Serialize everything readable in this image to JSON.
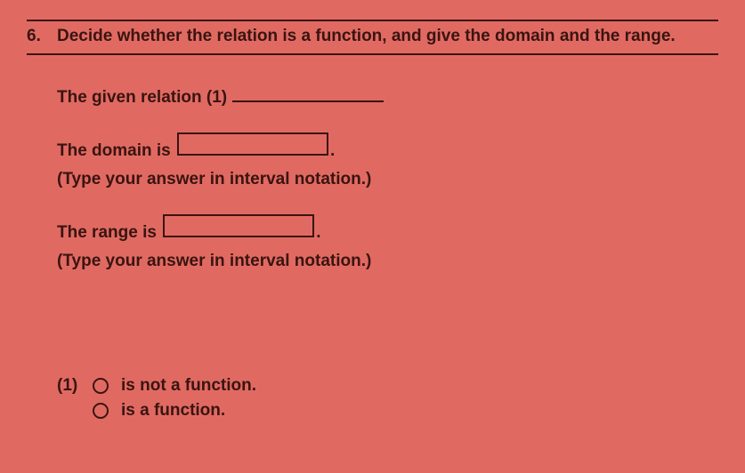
{
  "colors": {
    "background": "#e06a62",
    "text": "#3a1410",
    "rule": "#3a1410",
    "box_border": "#3a1410",
    "radio_border": "#3a1410"
  },
  "question": {
    "number": "6.",
    "prompt": "Decide whether the relation is a function, and give the domain and the range."
  },
  "lines": {
    "relation_label": "The given relation  (1)",
    "domain_label_pre": "The domain is",
    "domain_label_post": ".",
    "domain_hint": "(Type your answer in interval notation.)",
    "range_label_pre": "The range is",
    "range_label_post": ".",
    "range_hint": "(Type your answer in interval notation.)"
  },
  "options": {
    "group_label": "(1)",
    "choice_a": "is not a function.",
    "choice_b": "is a function."
  }
}
